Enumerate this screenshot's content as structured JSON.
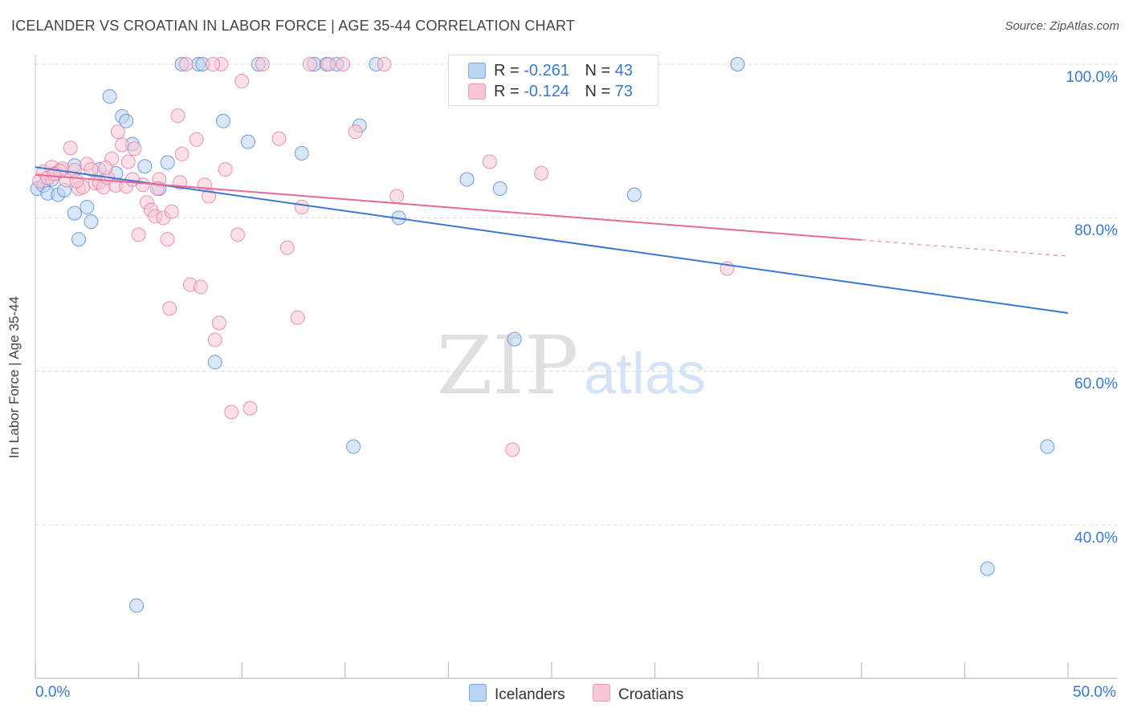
{
  "title": "ICELANDER VS CROATIAN IN LABOR FORCE | AGE 35-44 CORRELATION CHART",
  "source": "Source: ZipAtlas.com",
  "watermark": {
    "zip": "ZIP",
    "atlas": "atlas"
  },
  "legend": {
    "rows": [
      {
        "r_label": "R =",
        "r_value": "-0.261",
        "n_label": "N =",
        "n_value": "43",
        "color": "#8db8ec"
      },
      {
        "r_label": "R =",
        "r_value": "-0.124",
        "n_label": "N =",
        "n_value": "73",
        "color": "#f4a6bf"
      }
    ]
  },
  "chart_data": {
    "type": "scatter",
    "title": "ICELANDER VS CROATIAN IN LABOR FORCE | AGE 35-44 CORRELATION CHART",
    "xlabel": "",
    "ylabel": "In Labor Force | Age 35-44",
    "xlim": [
      0,
      50
    ],
    "ylim": [
      20,
      102
    ],
    "x_tick_labels": [
      "0.0%",
      "50.0%"
    ],
    "y_ticks": [
      40,
      60,
      80,
      100
    ],
    "y_tick_labels": [
      "40.0%",
      "60.0%",
      "80.0%",
      "100.0%"
    ],
    "grid": true,
    "series": [
      {
        "name": "Icelanders",
        "color": "#3a78d0",
        "fill": "#b9d3f3",
        "trend": {
          "x0": 0,
          "y0": 86.6,
          "x1": 50,
          "y1": 67.6,
          "dashed_from": null
        },
        "points": [
          [
            0.1,
            83.8
          ],
          [
            0.4,
            84.2
          ],
          [
            0.6,
            83.2
          ],
          [
            0.8,
            85.0
          ],
          [
            1.1,
            83.0
          ],
          [
            1.4,
            83.6
          ],
          [
            1.9,
            80.6
          ],
          [
            1.9,
            86.8
          ],
          [
            2.1,
            77.2
          ],
          [
            2.5,
            81.4
          ],
          [
            2.7,
            79.5
          ],
          [
            3.1,
            86.3
          ],
          [
            3.6,
            95.8
          ],
          [
            3.9,
            85.8
          ],
          [
            4.2,
            93.2
          ],
          [
            4.4,
            92.6
          ],
          [
            4.7,
            89.6
          ],
          [
            4.9,
            29.5
          ],
          [
            5.3,
            86.7
          ],
          [
            6.0,
            83.8
          ],
          [
            6.4,
            87.2
          ],
          [
            7.1,
            100.0
          ],
          [
            7.9,
            100.0
          ],
          [
            8.1,
            100.0
          ],
          [
            8.7,
            61.2
          ],
          [
            9.1,
            92.6
          ],
          [
            10.3,
            89.9
          ],
          [
            10.8,
            100.0
          ],
          [
            12.9,
            88.4
          ],
          [
            13.5,
            100.0
          ],
          [
            14.1,
            100.0
          ],
          [
            14.6,
            100.0
          ],
          [
            15.4,
            50.2
          ],
          [
            15.7,
            92.0
          ],
          [
            16.5,
            100.0
          ],
          [
            17.6,
            80.0
          ],
          [
            20.9,
            85.0
          ],
          [
            22.5,
            83.8
          ],
          [
            23.2,
            64.2
          ],
          [
            29.0,
            83.0
          ],
          [
            34.0,
            100.0
          ],
          [
            46.1,
            34.3
          ],
          [
            49.0,
            50.2
          ]
        ]
      },
      {
        "name": "Croatians",
        "color": "#e56a98",
        "fill": "#f8c6d6",
        "trend": {
          "x0": 0,
          "y0": 85.6,
          "x1": 50,
          "y1": 75.0,
          "dashed_from": 40
        },
        "points": [
          [
            0.2,
            84.8
          ],
          [
            0.4,
            86.0
          ],
          [
            0.6,
            85.2
          ],
          [
            0.8,
            86.6
          ],
          [
            1.0,
            85.8
          ],
          [
            1.3,
            86.4
          ],
          [
            1.5,
            84.9
          ],
          [
            1.7,
            89.1
          ],
          [
            1.9,
            86.2
          ],
          [
            2.1,
            83.8
          ],
          [
            2.3,
            84.0
          ],
          [
            2.5,
            87.0
          ],
          [
            2.7,
            86.3
          ],
          [
            2.9,
            84.5
          ],
          [
            3.1,
            84.6
          ],
          [
            3.3,
            84.0
          ],
          [
            3.5,
            85.2
          ],
          [
            3.7,
            87.7
          ],
          [
            3.9,
            84.2
          ],
          [
            4.0,
            91.2
          ],
          [
            4.2,
            89.5
          ],
          [
            4.4,
            84.1
          ],
          [
            4.5,
            87.3
          ],
          [
            4.8,
            89.0
          ],
          [
            5.0,
            77.8
          ],
          [
            5.2,
            84.3
          ],
          [
            5.4,
            82.0
          ],
          [
            5.6,
            81.0
          ],
          [
            5.8,
            80.2
          ],
          [
            6.0,
            85.0
          ],
          [
            6.2,
            80.0
          ],
          [
            6.4,
            77.2
          ],
          [
            6.5,
            68.2
          ],
          [
            6.6,
            80.8
          ],
          [
            6.9,
            93.3
          ],
          [
            7.1,
            88.3
          ],
          [
            7.3,
            100.0
          ],
          [
            7.5,
            71.3
          ],
          [
            7.8,
            90.2
          ],
          [
            8.0,
            71.0
          ],
          [
            8.2,
            84.3
          ],
          [
            8.4,
            82.8
          ],
          [
            8.7,
            64.1
          ],
          [
            8.9,
            66.3
          ],
          [
            9.2,
            86.3
          ],
          [
            9.5,
            54.7
          ],
          [
            9.8,
            77.8
          ],
          [
            10.0,
            97.8
          ],
          [
            10.4,
            55.2
          ],
          [
            11.0,
            100.0
          ],
          [
            11.8,
            90.3
          ],
          [
            12.2,
            76.1
          ],
          [
            12.7,
            67.0
          ],
          [
            12.9,
            81.4
          ],
          [
            13.3,
            100.0
          ],
          [
            14.2,
            100.0
          ],
          [
            14.9,
            100.0
          ],
          [
            15.5,
            91.2
          ],
          [
            16.9,
            100.0
          ],
          [
            17.5,
            82.8
          ],
          [
            22.0,
            87.3
          ],
          [
            23.1,
            49.8
          ],
          [
            24.5,
            85.8
          ],
          [
            33.5,
            73.4
          ],
          [
            9.0,
            100.0
          ],
          [
            8.6,
            100.0
          ],
          [
            5.9,
            83.8
          ],
          [
            2.0,
            84.8
          ],
          [
            1.2,
            86.1
          ],
          [
            0.9,
            85.7
          ],
          [
            4.7,
            85.0
          ],
          [
            3.4,
            86.5
          ],
          [
            7.0,
            84.6
          ]
        ]
      }
    ]
  }
}
